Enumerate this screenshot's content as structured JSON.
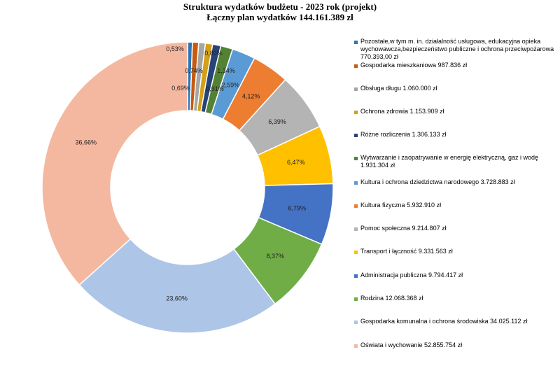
{
  "chart_data": {
    "type": "pie",
    "title": "Struktura wydatków budżetu - 2023 rok (projekt)",
    "subtitle": "Łączny plan wydatków 144.161.389 zł",
    "slices": [
      {
        "label": "Pozostałe,w tym m. in. działalność usługowa, edukacyjna opieka wychowawcza,bezpieczeństwo publiczne i ochrona przeciwpożarowa 770.393,00 zł",
        "value": 0.53,
        "data_label": "0,53%",
        "color": "#2e75b6"
      },
      {
        "label": "Gospodarka mieszkaniowa 987.836 zł",
        "value": 0.69,
        "data_label": "0,69%",
        "color": "#c55a11"
      },
      {
        "label": "Obsługa długu 1.060.000 zł",
        "value": 0.74,
        "data_label": "0,74%",
        "color": "#a5a5a5"
      },
      {
        "label": "Ochrona zdrowia 1.153.909 zł",
        "value": 0.8,
        "data_label": "0,80%",
        "color": "#d4a017"
      },
      {
        "label": "Różne rozliczenia 1.306.133 zł",
        "value": 0.91,
        "data_label": "0,91%",
        "color": "#264478"
      },
      {
        "label": "Wytwarzanie i zaopatrywanie w energię elektryczną, gaz i wodę 1.931.304 zł",
        "value": 1.34,
        "data_label": "1,34%",
        "color": "#548235"
      },
      {
        "label": "Kultura i ochrona dziedzictwa narodowego 3.728.883 zł",
        "value": 2.59,
        "data_label": "2,59%",
        "color": "#5b9bd5"
      },
      {
        "label": "Kultura fizyczna 5.932.910 zł",
        "value": 4.12,
        "data_label": "4,12%",
        "color": "#ed7d31"
      },
      {
        "label": "Pomoc społeczna 9.214.807 zł",
        "value": 6.39,
        "data_label": "6,39%",
        "color": "#b4b4b4"
      },
      {
        "label": "Transport i łączność 9.331.563 zł",
        "value": 6.47,
        "data_label": "6,47%",
        "color": "#ffc000"
      },
      {
        "label": "Administracja publiczna 9.794.417 zł",
        "value": 6.79,
        "data_label": "6,79%",
        "color": "#4472c4"
      },
      {
        "label": "Rodzina 12.068.368 zł",
        "value": 8.37,
        "data_label": "8,37%",
        "color": "#70ad47"
      },
      {
        "label": "Gospodarka komunalna i ochrona środowiska 34.025.112 zł",
        "value": 23.6,
        "data_label": "23,60%",
        "color": "#adc5e7"
      },
      {
        "label": "Oświata i wychowanie 52.855.754 zł",
        "value": 36.66,
        "data_label": "36,66%",
        "color": "#f4b8a0"
      }
    ],
    "legend_position": "right"
  }
}
